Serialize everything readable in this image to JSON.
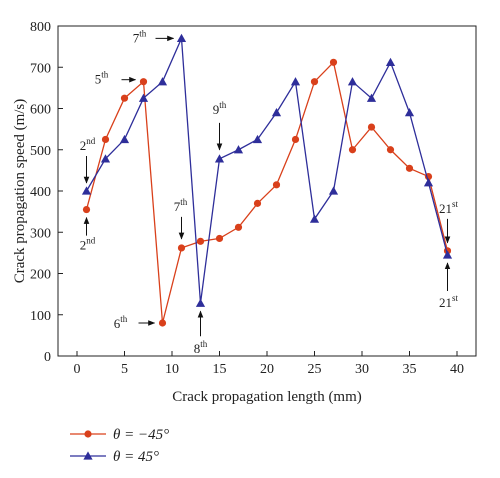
{
  "chart_data": {
    "type": "line",
    "xlabel": "Crack propagation length (mm)",
    "ylabel": "Crack propagation speed (m/s)",
    "xlim": [
      -2,
      42
    ],
    "ylim": [
      0,
      800
    ],
    "xticks": [
      "0",
      "5",
      "10",
      "15",
      "20",
      "25",
      "30",
      "35",
      "40"
    ],
    "yticks": [
      "0",
      "100",
      "200",
      "300",
      "400",
      "500",
      "600",
      "700",
      "800"
    ],
    "grid": false,
    "legend_position": "bottom-left",
    "series": [
      {
        "name": "θ = −45°",
        "color": "#d9401b",
        "marker": "circle",
        "points": [
          [
            1,
            355
          ],
          [
            3,
            525
          ],
          [
            5,
            625
          ],
          [
            7,
            665
          ],
          [
            9,
            80
          ],
          [
            11,
            262
          ],
          [
            13,
            278
          ],
          [
            15,
            285
          ],
          [
            17,
            312
          ],
          [
            19,
            370
          ],
          [
            21,
            415
          ],
          [
            23,
            525
          ],
          [
            25,
            665
          ],
          [
            27,
            712
          ],
          [
            29,
            500
          ],
          [
            31,
            555
          ],
          [
            33,
            500
          ],
          [
            35,
            455
          ],
          [
            37,
            435
          ],
          [
            39,
            255
          ]
        ]
      },
      {
        "name": "θ = 45°",
        "color": "#2e2e9a",
        "marker": "triangle",
        "points": [
          [
            1,
            400
          ],
          [
            3,
            478
          ],
          [
            5,
            525
          ],
          [
            7,
            625
          ],
          [
            9,
            665
          ],
          [
            11,
            770
          ],
          [
            13,
            128
          ],
          [
            15,
            478
          ],
          [
            17,
            500
          ],
          [
            19,
            525
          ],
          [
            21,
            590
          ],
          [
            23,
            665
          ],
          [
            25,
            332
          ],
          [
            27,
            400
          ],
          [
            29,
            665
          ],
          [
            31,
            625
          ],
          [
            33,
            712
          ],
          [
            35,
            590
          ],
          [
            37,
            420
          ],
          [
            39,
            245
          ]
        ]
      }
    ],
    "annotations": [
      {
        "base": "2",
        "sup": "nd",
        "x": 1,
        "y": 400
      },
      {
        "base": "2",
        "sup": "nd",
        "x": 1,
        "y": 355
      },
      {
        "base": "5",
        "sup": "th",
        "x": 7,
        "y": 665
      },
      {
        "base": "7",
        "sup": "th",
        "x": 11,
        "y": 770
      },
      {
        "base": "6",
        "sup": "th",
        "x": 9,
        "y": 80
      },
      {
        "base": "7",
        "sup": "th",
        "x": 11,
        "y": 262
      },
      {
        "base": "8",
        "sup": "th",
        "x": 13,
        "y": 128
      },
      {
        "base": "9",
        "sup": "th",
        "x": 15,
        "y": 478
      },
      {
        "base": "21",
        "sup": "st",
        "x": 39,
        "y": 255
      },
      {
        "base": "21",
        "sup": "st",
        "x": 39,
        "y": 245
      }
    ]
  }
}
